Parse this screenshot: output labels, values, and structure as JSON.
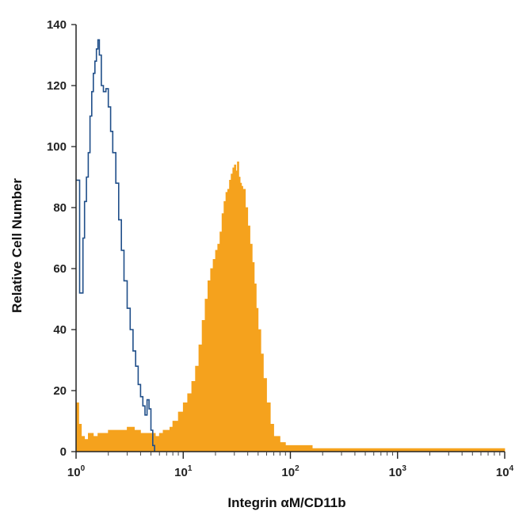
{
  "chart_data": {
    "type": "area",
    "title": "",
    "xlabel": "Integrin αM/CD11b",
    "ylabel": "Relative Cell Number",
    "x_scale": "log",
    "xlim": [
      1,
      10000
    ],
    "ylim": [
      0,
      140
    ],
    "y_ticks": [
      0,
      20,
      40,
      60,
      80,
      100,
      120,
      140
    ],
    "x_ticks": [
      {
        "value": 1,
        "base": "10",
        "exp": "0"
      },
      {
        "value": 10,
        "base": "10",
        "exp": "1"
      },
      {
        "value": 100,
        "base": "10",
        "exp": "2"
      },
      {
        "value": 1000,
        "base": "10",
        "exp": "3"
      },
      {
        "value": 10000,
        "base": "10",
        "exp": "4"
      }
    ],
    "grid": false,
    "legend": "none",
    "series": [
      {
        "style": "outline",
        "color": "#1f4e89",
        "points": [
          [
            1.0,
            89
          ],
          [
            1.05,
            89
          ],
          [
            1.08,
            52
          ],
          [
            1.12,
            52
          ],
          [
            1.16,
            70
          ],
          [
            1.2,
            82
          ],
          [
            1.25,
            90
          ],
          [
            1.3,
            98
          ],
          [
            1.35,
            110
          ],
          [
            1.4,
            118
          ],
          [
            1.45,
            124
          ],
          [
            1.5,
            128
          ],
          [
            1.55,
            132
          ],
          [
            1.6,
            135
          ],
          [
            1.65,
            130
          ],
          [
            1.72,
            120
          ],
          [
            1.8,
            118
          ],
          [
            1.9,
            119
          ],
          [
            2.0,
            113
          ],
          [
            2.1,
            105
          ],
          [
            2.2,
            98
          ],
          [
            2.35,
            88
          ],
          [
            2.5,
            76
          ],
          [
            2.65,
            66
          ],
          [
            2.8,
            56
          ],
          [
            3.0,
            47
          ],
          [
            3.2,
            40
          ],
          [
            3.4,
            33
          ],
          [
            3.6,
            28
          ],
          [
            3.8,
            22
          ],
          [
            4.0,
            18
          ],
          [
            4.2,
            15
          ],
          [
            4.4,
            12
          ],
          [
            4.6,
            17
          ],
          [
            4.8,
            14
          ],
          [
            5.0,
            7
          ],
          [
            5.2,
            2
          ],
          [
            5.4,
            0
          ]
        ]
      },
      {
        "style": "filled",
        "color": "#f5a21d",
        "points": [
          [
            1.0,
            16
          ],
          [
            1.06,
            9
          ],
          [
            1.12,
            5
          ],
          [
            1.2,
            4
          ],
          [
            1.3,
            6
          ],
          [
            1.45,
            5
          ],
          [
            1.6,
            6
          ],
          [
            1.8,
            6
          ],
          [
            2.0,
            7
          ],
          [
            2.3,
            7
          ],
          [
            2.6,
            7
          ],
          [
            3.0,
            8
          ],
          [
            3.5,
            7
          ],
          [
            4.0,
            6
          ],
          [
            4.5,
            6
          ],
          [
            5.0,
            6
          ],
          [
            5.5,
            5
          ],
          [
            6.0,
            6
          ],
          [
            6.5,
            7
          ],
          [
            7.0,
            7
          ],
          [
            7.5,
            8
          ],
          [
            8.0,
            10
          ],
          [
            9.0,
            13
          ],
          [
            10.0,
            16
          ],
          [
            11.0,
            19
          ],
          [
            12.0,
            23
          ],
          [
            13.0,
            28
          ],
          [
            14.0,
            35
          ],
          [
            15.0,
            43
          ],
          [
            16.0,
            50
          ],
          [
            17.0,
            56
          ],
          [
            18.0,
            60
          ],
          [
            19.0,
            63
          ],
          [
            20.0,
            66
          ],
          [
            21.0,
            68
          ],
          [
            22.0,
            72
          ],
          [
            23.0,
            78
          ],
          [
            24.0,
            82
          ],
          [
            25.0,
            85
          ],
          [
            26.0,
            86
          ],
          [
            27.0,
            89
          ],
          [
            28.0,
            91
          ],
          [
            29.0,
            93
          ],
          [
            30.0,
            94
          ],
          [
            31.0,
            92
          ],
          [
            32.0,
            95
          ],
          [
            33.0,
            90
          ],
          [
            34.0,
            88
          ],
          [
            35.0,
            87
          ],
          [
            36.0,
            86
          ],
          [
            38.0,
            80
          ],
          [
            40.0,
            74
          ],
          [
            42.0,
            68
          ],
          [
            44.0,
            62
          ],
          [
            46.0,
            55
          ],
          [
            48.0,
            47
          ],
          [
            50.0,
            40
          ],
          [
            53.0,
            32
          ],
          [
            56.0,
            24
          ],
          [
            60.0,
            16
          ],
          [
            65.0,
            9
          ],
          [
            70.0,
            5
          ],
          [
            80.0,
            3
          ],
          [
            90.0,
            2
          ],
          [
            100.0,
            2
          ],
          [
            130.0,
            2
          ],
          [
            160.0,
            1
          ],
          [
            200.0,
            1
          ],
          [
            400.0,
            1
          ],
          [
            1000.0,
            1
          ],
          [
            3000.0,
            1
          ],
          [
            10000.0,
            1
          ]
        ]
      }
    ]
  }
}
